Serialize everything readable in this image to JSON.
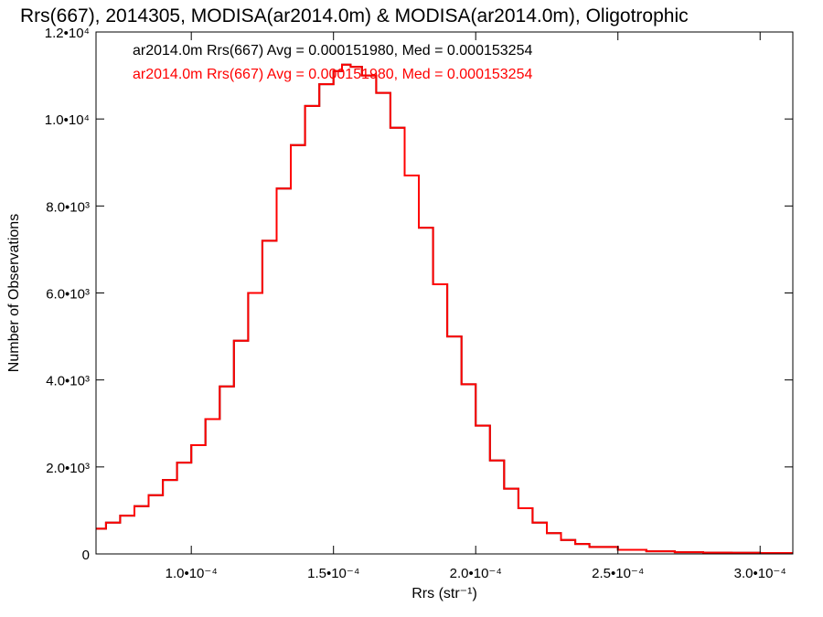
{
  "chart_data": {
    "type": "line",
    "title": "Rrs(667), 2014305, MODISA(ar2014.0m) & MODISA(ar2014.0m), Oligotrophic",
    "xlabel": "Rrs (str⁻¹)",
    "ylabel": "Number of Observations",
    "xlim": [
      6.65e-05,
      0.0003115
    ],
    "ylim": [
      0,
      12000
    ],
    "x_ticks": [
      {
        "value": 0.0001,
        "label": "1.0•10⁻⁴"
      },
      {
        "value": 0.00015,
        "label": "1.5•10⁻⁴"
      },
      {
        "value": 0.0002,
        "label": "2.0•10⁻⁴"
      },
      {
        "value": 0.00025,
        "label": "2.5•10⁻⁴"
      },
      {
        "value": 0.0003,
        "label": "3.0•10⁻⁴"
      }
    ],
    "y_ticks": [
      {
        "value": 0,
        "label": "0"
      },
      {
        "value": 2000,
        "label": "2.0•10³"
      },
      {
        "value": 4000,
        "label": "4.0•10³"
      },
      {
        "value": 6000,
        "label": "6.0•10³"
      },
      {
        "value": 8000,
        "label": "8.0•10³"
      },
      {
        "value": 10000,
        "label": "1.0•10⁴"
      },
      {
        "value": 12000,
        "label": "1.2•10⁴"
      }
    ],
    "grid": false,
    "legend_position": "top-left",
    "series": [
      {
        "name": "ar2014.0m Rrs(667) Avg = 0.000151980, Med = 0.000153254",
        "color": "#000000",
        "x": [
          6.65e-05,
          7e-05,
          7.5e-05,
          8e-05,
          8.5e-05,
          9e-05,
          9.5e-05,
          0.0001,
          0.000105,
          0.00011,
          0.000115,
          0.00012,
          0.000125,
          0.00013,
          0.000135,
          0.00014,
          0.000145,
          0.00015,
          0.000153,
          0.000156,
          0.00016,
          0.000165,
          0.00017,
          0.000175,
          0.00018,
          0.000185,
          0.00019,
          0.000195,
          0.0002,
          0.000205,
          0.00021,
          0.000215,
          0.00022,
          0.000225,
          0.00023,
          0.000235,
          0.00024,
          0.00025,
          0.00026,
          0.00027,
          0.00028,
          0.00029,
          0.0003,
          0.00031
        ],
        "y": [
          580,
          720,
          880,
          1100,
          1350,
          1700,
          2100,
          2500,
          3100,
          3850,
          4900,
          6000,
          7200,
          8400,
          9400,
          10300,
          10800,
          11100,
          11250,
          11200,
          11000,
          10600,
          9800,
          8700,
          7500,
          6200,
          5000,
          3900,
          2950,
          2150,
          1500,
          1050,
          720,
          480,
          320,
          230,
          160,
          95,
          60,
          40,
          30,
          25,
          20,
          20
        ]
      },
      {
        "name": "ar2014.0m Rrs(667) Avg = 0.000151980, Med = 0.000153254",
        "color": "#ff0000",
        "x": [
          6.65e-05,
          7e-05,
          7.5e-05,
          8e-05,
          8.5e-05,
          9e-05,
          9.5e-05,
          0.0001,
          0.000105,
          0.00011,
          0.000115,
          0.00012,
          0.000125,
          0.00013,
          0.000135,
          0.00014,
          0.000145,
          0.00015,
          0.000153,
          0.000156,
          0.00016,
          0.000165,
          0.00017,
          0.000175,
          0.00018,
          0.000185,
          0.00019,
          0.000195,
          0.0002,
          0.000205,
          0.00021,
          0.000215,
          0.00022,
          0.000225,
          0.00023,
          0.000235,
          0.00024,
          0.00025,
          0.00026,
          0.00027,
          0.00028,
          0.00029,
          0.0003,
          0.00031
        ],
        "y": [
          580,
          720,
          880,
          1100,
          1350,
          1700,
          2100,
          2500,
          3100,
          3850,
          4900,
          6000,
          7200,
          8400,
          9400,
          10300,
          10800,
          11100,
          11250,
          11200,
          11000,
          10600,
          9800,
          8700,
          7500,
          6200,
          5000,
          3900,
          2950,
          2150,
          1500,
          1050,
          720,
          480,
          320,
          230,
          160,
          95,
          60,
          40,
          30,
          25,
          20,
          20
        ]
      }
    ]
  }
}
